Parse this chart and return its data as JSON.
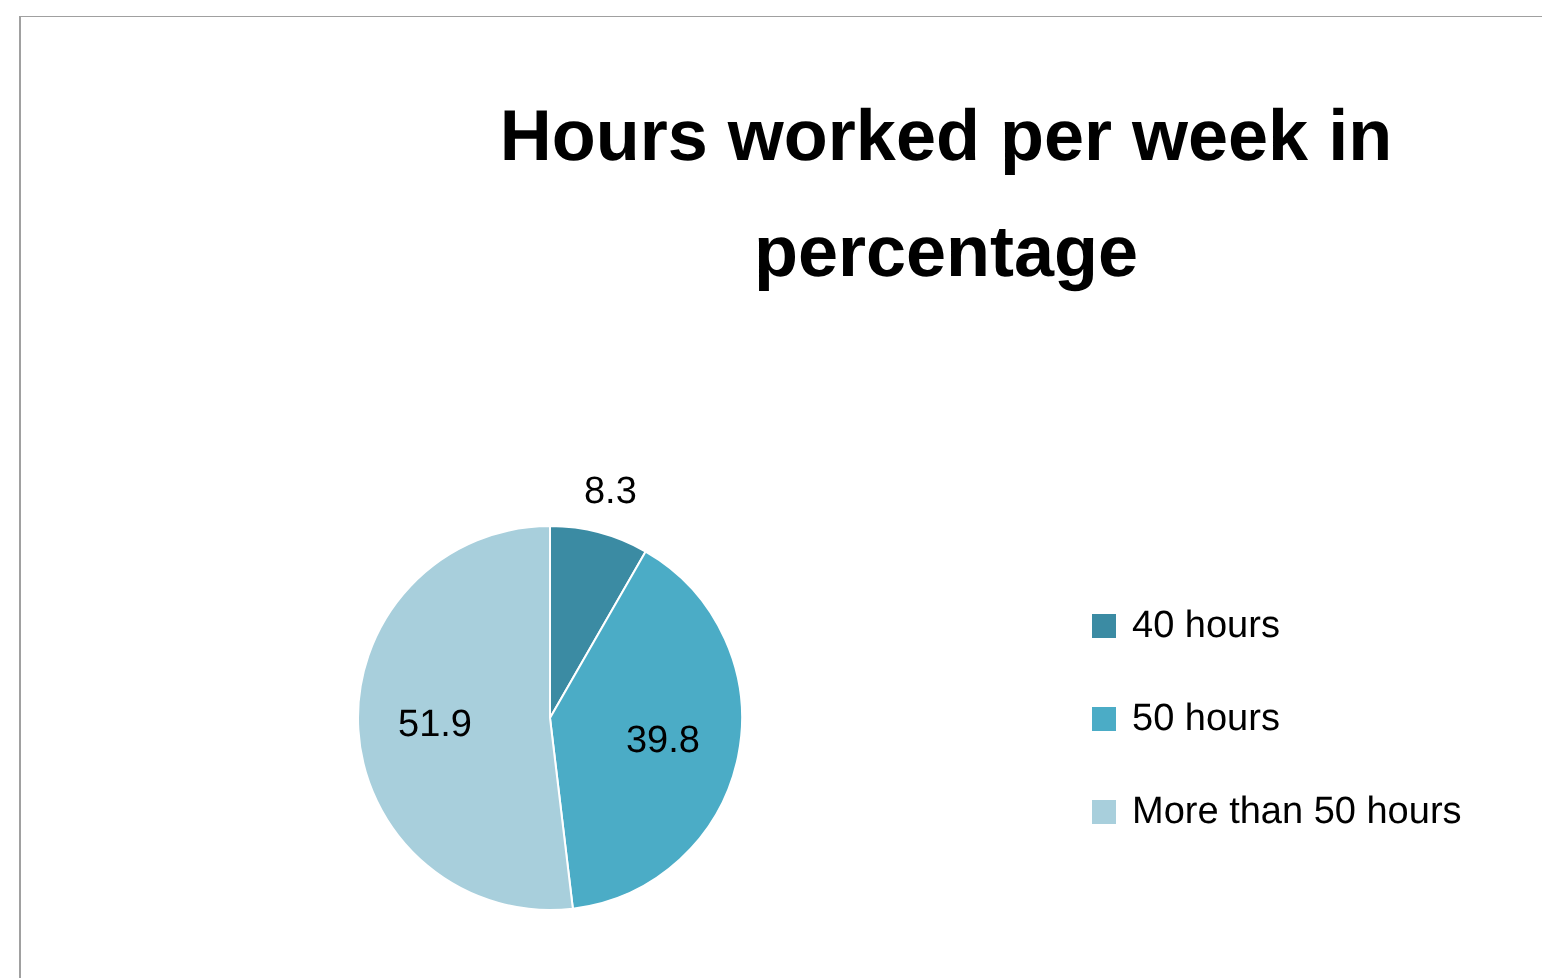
{
  "chart_data": {
    "type": "pie",
    "title": "Hours worked per week in percentage",
    "categories": [
      "40 hours",
      "50 hours",
      "More than 50 hours"
    ],
    "values": [
      8.3,
      39.8,
      51.9
    ],
    "colors": [
      "#3b8ba3",
      "#4bacc6",
      "#a8cfdc"
    ],
    "data_labels": true,
    "legend": "right"
  }
}
